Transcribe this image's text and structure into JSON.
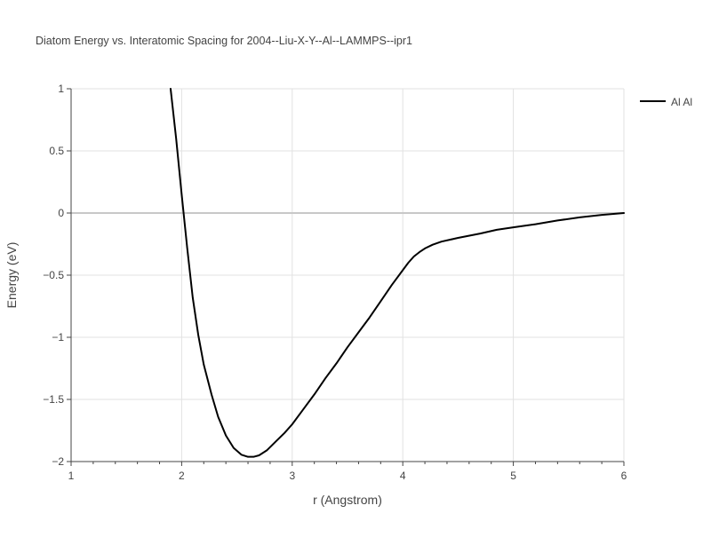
{
  "chart_data": {
    "type": "line",
    "title": "Diatom Energy vs. Interatomic Spacing for 2004--Liu-X-Y--Al--LAMMPS--ipr1",
    "xlabel": "r (Angstrom)",
    "ylabel": "Energy (eV)",
    "xlim": [
      1,
      6
    ],
    "ylim": [
      -2,
      1
    ],
    "x_ticks": [
      {
        "value": 1,
        "label": "1"
      },
      {
        "value": 2,
        "label": "2"
      },
      {
        "value": 3,
        "label": "3"
      },
      {
        "value": 4,
        "label": "4"
      },
      {
        "value": 5,
        "label": "5"
      },
      {
        "value": 6,
        "label": "6"
      }
    ],
    "y_ticks": [
      {
        "value": 1,
        "label": "1"
      },
      {
        "value": 0.5,
        "label": "0.5"
      },
      {
        "value": 0,
        "label": "0"
      },
      {
        "value": -0.5,
        "label": "−0.5"
      },
      {
        "value": -1,
        "label": "−1"
      },
      {
        "value": -1.5,
        "label": "−1.5"
      },
      {
        "value": -2,
        "label": "−2"
      }
    ],
    "grid": true,
    "legend_position": "top-right",
    "series": [
      {
        "name": "Al Al",
        "color": "#000000",
        "x": [
          1.9,
          1.95,
          2.0,
          2.05,
          2.1,
          2.15,
          2.2,
          2.27,
          2.33,
          2.4,
          2.47,
          2.54,
          2.6,
          2.65,
          2.7,
          2.77,
          2.85,
          2.93,
          3.0,
          3.1,
          3.2,
          3.3,
          3.4,
          3.5,
          3.6,
          3.7,
          3.8,
          3.9,
          4.0,
          4.05,
          4.1,
          4.15,
          4.2,
          4.27,
          4.35,
          4.5,
          4.7,
          4.85,
          5.0,
          5.2,
          5.4,
          5.6,
          5.8,
          6.0
        ],
        "y": [
          1.0,
          0.6,
          0.15,
          -0.28,
          -0.68,
          -0.98,
          -1.22,
          -1.46,
          -1.64,
          -1.79,
          -1.89,
          -1.945,
          -1.962,
          -1.962,
          -1.95,
          -1.91,
          -1.84,
          -1.77,
          -1.7,
          -1.58,
          -1.46,
          -1.33,
          -1.21,
          -1.08,
          -0.96,
          -0.84,
          -0.71,
          -0.58,
          -0.46,
          -0.4,
          -0.35,
          -0.315,
          -0.285,
          -0.255,
          -0.23,
          -0.2,
          -0.165,
          -0.135,
          -0.115,
          -0.09,
          -0.06,
          -0.035,
          -0.015,
          0.0
        ]
      }
    ]
  }
}
